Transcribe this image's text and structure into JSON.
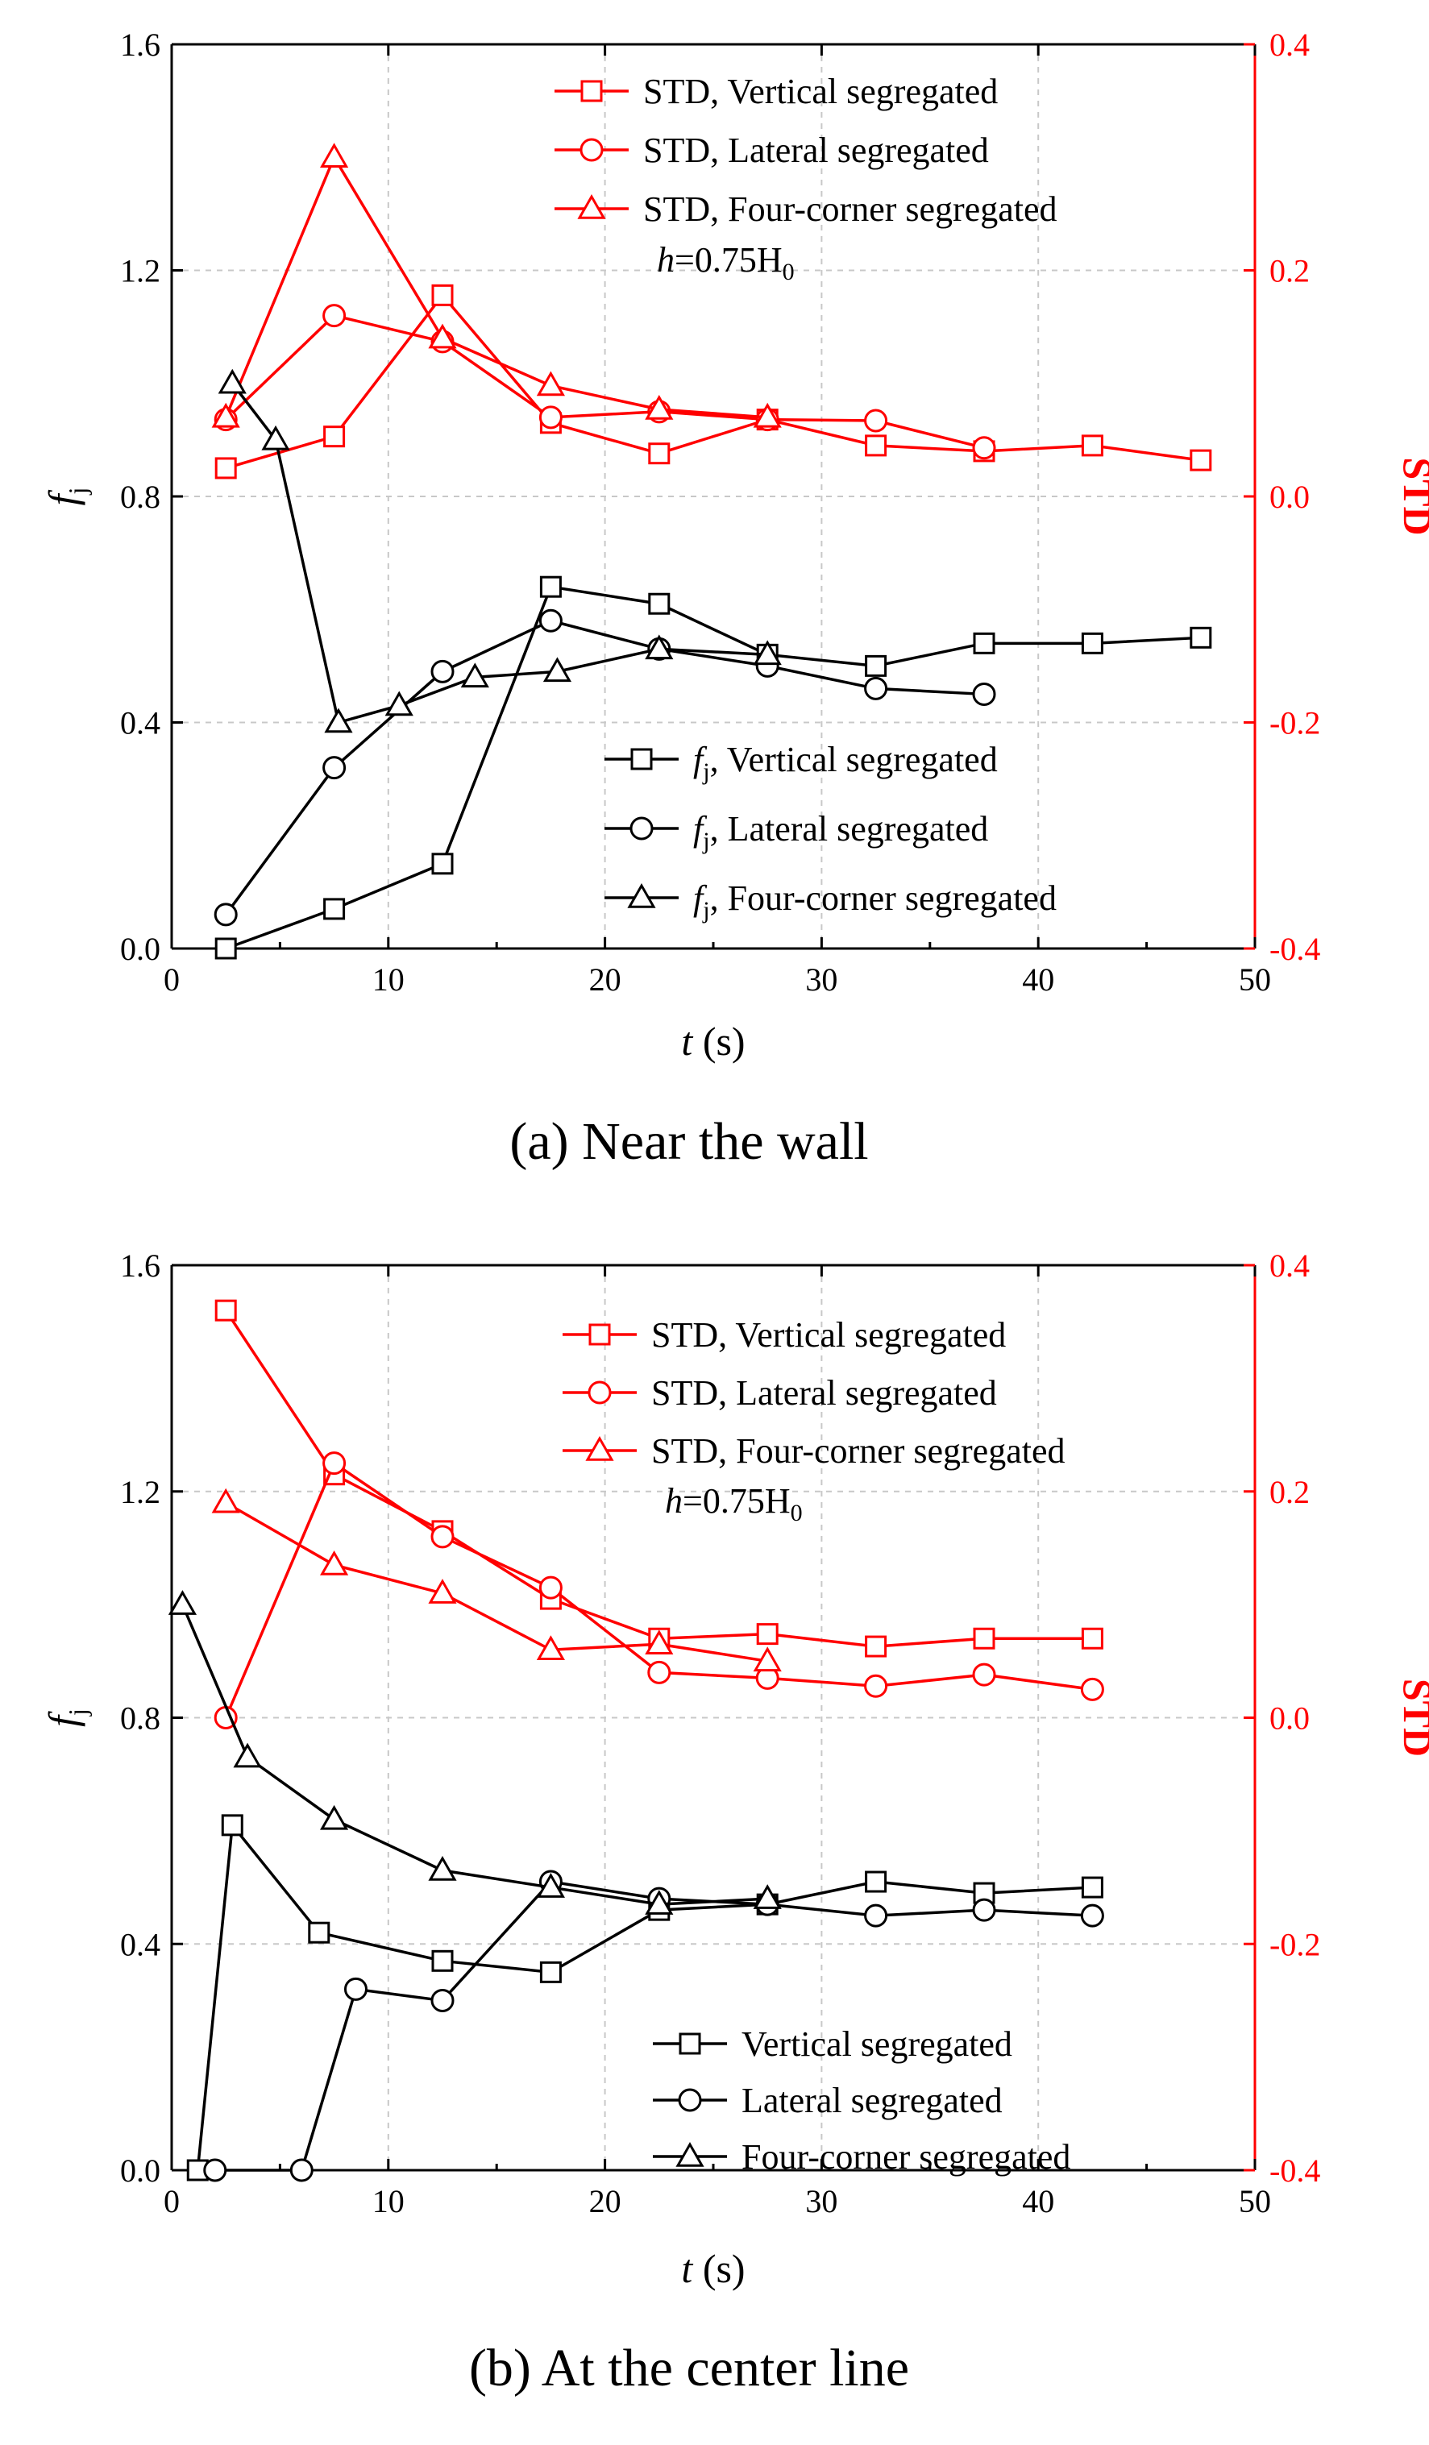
{
  "colors": {
    "black": "#000000",
    "red": "#ff0000"
  },
  "chart_data": [
    {
      "type": "line",
      "caption": "(a) Near the wall",
      "xlabel": "t (s)",
      "xlabel_var": "t",
      "xlabel_unit": " (s)",
      "ylabel": "f_j",
      "ylabel_var": "f",
      "ylabel_sub": "j",
      "y2label": "STD",
      "xlim": [
        0,
        50
      ],
      "ylim": [
        0,
        1.6
      ],
      "y2lim": [
        -0.4,
        0.4
      ],
      "xticks": [
        "0",
        "10",
        "20",
        "30",
        "40",
        "50"
      ],
      "yticks": [
        "0.0",
        "0.4",
        "0.8",
        "1.2",
        "1.6"
      ],
      "y2ticks": [
        "-0.4",
        "-0.2",
        "0.0",
        "0.2",
        "0.4"
      ],
      "annotation": {
        "var": "h",
        "text": "=0.75H",
        "sub": "0"
      },
      "series": [
        {
          "name": "STD, Vertical segregated",
          "axis": "right",
          "marker": "square",
          "color": "#ff0000",
          "x": [
            2.5,
            7.5,
            12.5,
            17.5,
            22.5,
            27.5,
            32.5,
            37.5,
            42.5,
            47.5
          ],
          "y": [
            0.025,
            0.053,
            0.178,
            0.065,
            0.038,
            0.068,
            0.045,
            0.04,
            0.045,
            0.032
          ]
        },
        {
          "name": "STD, Lateral segregated",
          "axis": "right",
          "marker": "circle",
          "color": "#ff0000",
          "x": [
            2.5,
            7.5,
            12.5,
            17.5,
            22.5,
            27.5,
            32.5,
            37.5
          ],
          "y": [
            0.068,
            0.16,
            0.137,
            0.07,
            0.075,
            0.068,
            0.067,
            0.043
          ]
        },
        {
          "name": "STD, Four-corner segregated",
          "axis": "right",
          "marker": "triangle",
          "color": "#ff0000",
          "x": [
            2.5,
            7.5,
            12.5,
            17.5,
            22.5,
            27.5
          ],
          "y": [
            0.07,
            0.3,
            0.14,
            0.098,
            0.077,
            0.07
          ]
        },
        {
          "name": "Vertical segregated",
          "legend_prefix_var": "f",
          "legend_prefix_sub": "j",
          "legend_text": ", Vertical segregated",
          "axis": "left",
          "marker": "square",
          "color": "#000000",
          "x": [
            2.5,
            7.5,
            12.5,
            17.5,
            22.5,
            27.5,
            32.5,
            37.5,
            42.5,
            47.5
          ],
          "y": [
            0.0,
            0.07,
            0.15,
            0.64,
            0.61,
            0.52,
            0.5,
            0.54,
            0.54,
            0.55
          ]
        },
        {
          "name": "Lateral segregated",
          "legend_prefix_var": "f",
          "legend_prefix_sub": "j",
          "legend_text": ", Lateral segregated",
          "axis": "left",
          "marker": "circle",
          "color": "#000000",
          "x": [
            2.5,
            7.5,
            12.5,
            17.5,
            22.5,
            27.5,
            32.5,
            37.5
          ],
          "y": [
            0.06,
            0.32,
            0.49,
            0.58,
            0.53,
            0.5,
            0.46,
            0.45
          ]
        },
        {
          "name": "Four-corner segregated",
          "legend_prefix_var": "f",
          "legend_prefix_sub": "j",
          "legend_text": ", Four-corner segregated",
          "axis": "left",
          "marker": "triangle",
          "color": "#000000",
          "x": [
            2.8,
            4.8,
            7.7,
            10.5,
            14,
            17.8,
            22.5,
            27.5
          ],
          "y": [
            1.0,
            0.9,
            0.4,
            0.43,
            0.48,
            0.49,
            0.53,
            0.52
          ]
        }
      ]
    },
    {
      "type": "line",
      "caption": "(b) At the center line",
      "xlabel": "t (s)",
      "xlabel_var": "t",
      "xlabel_unit": " (s)",
      "ylabel": "f_j",
      "ylabel_var": "f",
      "ylabel_sub": "j",
      "y2label": "STD",
      "xlim": [
        0,
        50
      ],
      "ylim": [
        0,
        1.6
      ],
      "y2lim": [
        -0.4,
        0.4
      ],
      "xticks": [
        "0",
        "10",
        "20",
        "30",
        "40",
        "50"
      ],
      "yticks": [
        "0.0",
        "0.4",
        "0.8",
        "1.2",
        "1.6"
      ],
      "y2ticks": [
        "-0.4",
        "-0.2",
        "0.0",
        "0.2",
        "0.4"
      ],
      "annotation": {
        "var": "h",
        "text": "=0.75H",
        "sub": "0"
      },
      "series": [
        {
          "name": "STD, Vertical segregated",
          "axis": "right",
          "marker": "square",
          "color": "#ff0000",
          "x": [
            2.5,
            7.5,
            12.5,
            17.5,
            22.5,
            27.5,
            32.5,
            37.5,
            42.5
          ],
          "y": [
            0.36,
            0.215,
            0.165,
            0.105,
            0.07,
            0.074,
            0.063,
            0.07,
            0.07
          ]
        },
        {
          "name": "STD, Lateral segregated",
          "axis": "right",
          "marker": "circle",
          "color": "#ff0000",
          "x": [
            2.5,
            7.5,
            12.5,
            17.5,
            22.5,
            27.5,
            32.5,
            37.5,
            42.5
          ],
          "y": [
            0.0,
            0.225,
            0.16,
            0.115,
            0.04,
            0.035,
            0.028,
            0.038,
            0.025
          ]
        },
        {
          "name": "STD, Four-corner segregated",
          "axis": "right",
          "marker": "triangle",
          "color": "#ff0000",
          "x": [
            2.5,
            7.5,
            12.5,
            17.5,
            22.5,
            27.5
          ],
          "y": [
            0.19,
            0.135,
            0.11,
            0.06,
            0.065,
            0.05
          ]
        },
        {
          "name": "Vertical segregated",
          "legend_text": "Vertical segregated",
          "axis": "left",
          "marker": "square",
          "color": "#000000",
          "x": [
            1.2,
            2.8,
            6.8,
            12.5,
            17.5,
            22.5,
            27.5,
            32.5,
            37.5,
            42.5
          ],
          "y": [
            0.0,
            0.61,
            0.42,
            0.37,
            0.35,
            0.46,
            0.47,
            0.51,
            0.49,
            0.5
          ]
        },
        {
          "name": "Lateral segregated",
          "legend_text": "Lateral segregated",
          "axis": "left",
          "marker": "circle",
          "color": "#000000",
          "x": [
            2.0,
            6.0,
            8.5,
            12.5,
            17.5,
            22.5,
            27.5,
            32.5,
            37.5,
            42.5
          ],
          "y": [
            0.0,
            0.0,
            0.32,
            0.3,
            0.51,
            0.48,
            0.47,
            0.45,
            0.46,
            0.45
          ]
        },
        {
          "name": "Four-corner segregated",
          "legend_text": "Four-corner segregated",
          "axis": "left",
          "marker": "triangle",
          "color": "#000000",
          "x": [
            0.5,
            3.5,
            7.5,
            12.5,
            17.5,
            22.5,
            27.5
          ],
          "y": [
            1.0,
            0.73,
            0.62,
            0.53,
            0.5,
            0.47,
            0.48
          ]
        }
      ]
    }
  ]
}
